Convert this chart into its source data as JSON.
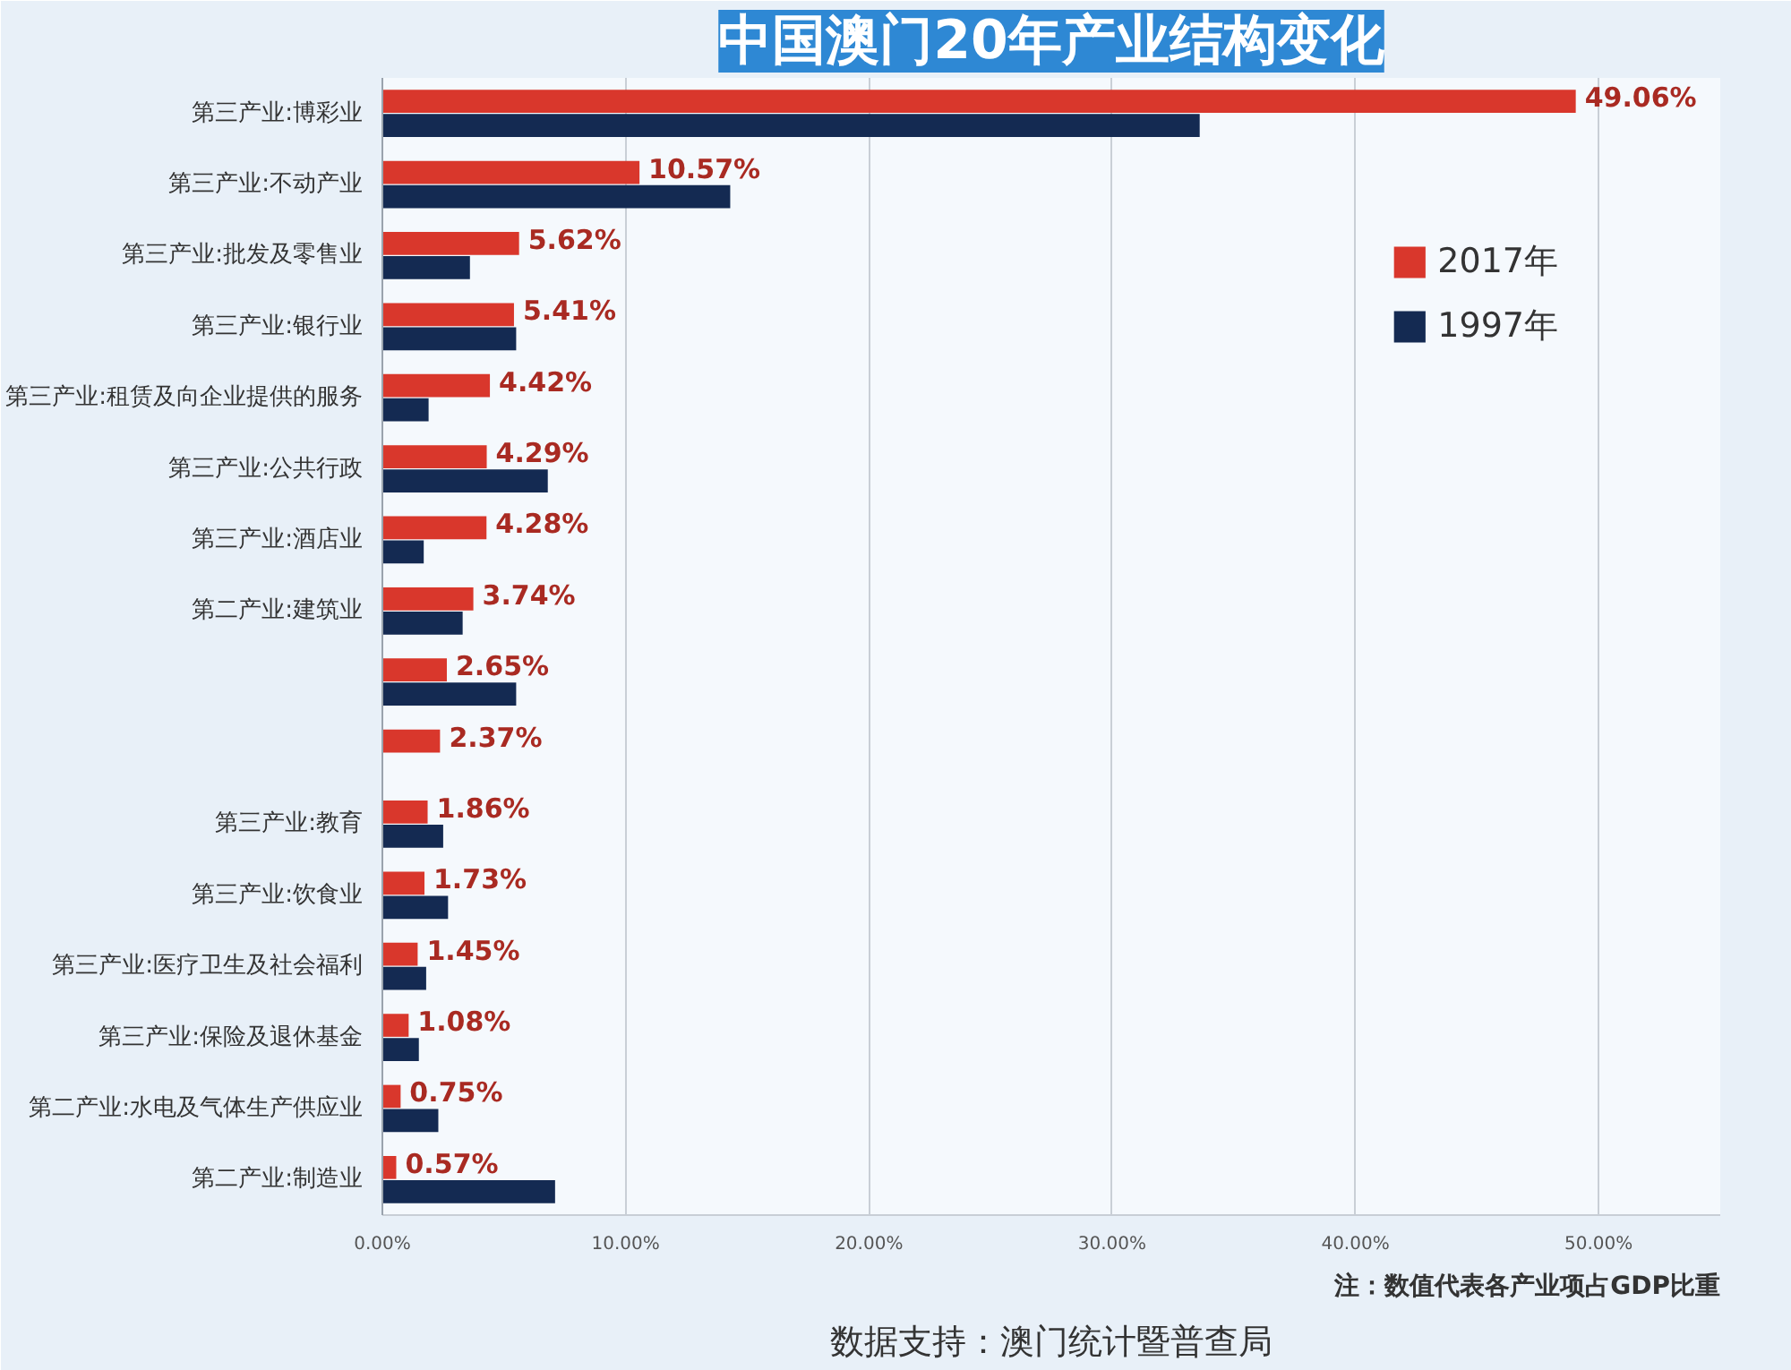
{
  "chart_data": {
    "type": "bar",
    "orientation": "horizontal",
    "title": "中国澳门20年产业结构变化",
    "categories": [
      "第三产业:博彩业",
      "第三产业:不动产业",
      "第三产业:批发及零售业",
      "第三产业:银行业",
      "第三产业:租赁及向企业提供的服务",
      "第三产业:公共行政",
      "第三产业:酒店业",
      "第二产业:建筑业",
      null,
      null,
      "第三产业:教育",
      "第三产业:饮食业",
      "第三产业:医疗卫生及社会福利",
      "第三产业:保险及退休基金",
      "第二产业:水电及气体生产供应业",
      "第二产业:制造业"
    ],
    "series": [
      {
        "name": "2017年",
        "color": "#d9372c",
        "values": [
          49.06,
          10.57,
          5.62,
          5.41,
          4.42,
          4.29,
          4.28,
          3.74,
          2.65,
          2.37,
          1.86,
          1.73,
          1.45,
          1.08,
          0.75,
          0.57
        ],
        "value_labels": [
          "49.06%",
          "10.57%",
          "5.62%",
          "5.41%",
          "4.42%",
          "4.29%",
          "4.28%",
          "3.74%",
          "2.65%",
          "2.37%",
          "1.86%",
          "1.73%",
          "1.45%",
          "1.08%",
          "0.75%",
          "0.57%"
        ]
      },
      {
        "name": "1997年",
        "color": "#142a52",
        "values": [
          33.6,
          14.3,
          3.6,
          5.5,
          1.9,
          6.8,
          1.7,
          3.3,
          5.5,
          null,
          2.5,
          2.7,
          1.8,
          1.5,
          2.3,
          7.1
        ]
      }
    ],
    "xlim": [
      0,
      55
    ],
    "xticks": [
      {
        "value": 0,
        "label": "0.00%"
      },
      {
        "value": 10,
        "label": "10.00%"
      },
      {
        "value": 20,
        "label": "20.00%"
      },
      {
        "value": 30,
        "label": "30.00%"
      },
      {
        "value": 40,
        "label": "40.00%"
      },
      {
        "value": 50,
        "label": "50.00%"
      }
    ],
    "grid": "x",
    "legend": "top right",
    "annotations": [
      "注：数值代表各产业项占GDP比重",
      "数据支持：澳门统计暨普查局"
    ]
  }
}
